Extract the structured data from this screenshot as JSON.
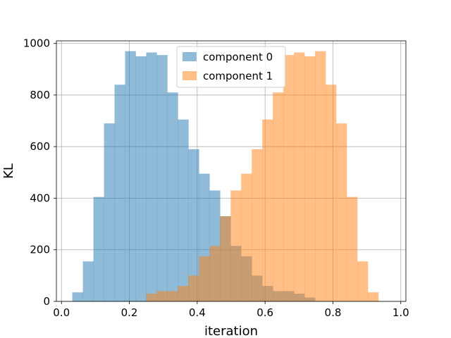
{
  "chart_data": {
    "type": "bar",
    "title": "",
    "xlabel": "iteration",
    "ylabel": "KL",
    "xlim": [
      -0.015,
      1.015
    ],
    "ylim": [
      0,
      1010
    ],
    "grid": true,
    "legend_position": "top-center",
    "x_ticks": [
      "0.0",
      "0.2",
      "0.4",
      "0.6",
      "0.8",
      "1.0"
    ],
    "y_ticks": [
      "0",
      "200",
      "400",
      "600",
      "800",
      "1000"
    ],
    "bin_edges": [
      0.032,
      0.0631,
      0.0942,
      0.1253,
      0.1564,
      0.1875,
      0.2186,
      0.2497,
      0.2808,
      0.3119,
      0.343,
      0.3741,
      0.4052,
      0.4363,
      0.4674,
      0.4985,
      0.5296,
      0.5607,
      0.5918,
      0.6229,
      0.654,
      0.6851,
      0.7162,
      0.7473,
      0.7784,
      0.8095,
      0.8406,
      0.8717,
      0.9028,
      0.9339,
      0.965
    ],
    "series": [
      {
        "name": "component 0",
        "color": "#1f77b4",
        "values": [
          35,
          155,
          405,
          690,
          840,
          970,
          950,
          965,
          955,
          810,
          705,
          590,
          495,
          430,
          330,
          215,
          175,
          100,
          60,
          40,
          40,
          30,
          15,
          0,
          0,
          0,
          0,
          0,
          0,
          0
        ]
      },
      {
        "name": "component 1",
        "color": "#ff7f0e",
        "values": [
          0,
          0,
          0,
          0,
          0,
          0,
          0,
          30,
          40,
          40,
          60,
          100,
          175,
          215,
          330,
          430,
          495,
          590,
          705,
          810,
          955,
          965,
          950,
          970,
          840,
          690,
          405,
          155,
          35,
          0
        ]
      }
    ]
  }
}
